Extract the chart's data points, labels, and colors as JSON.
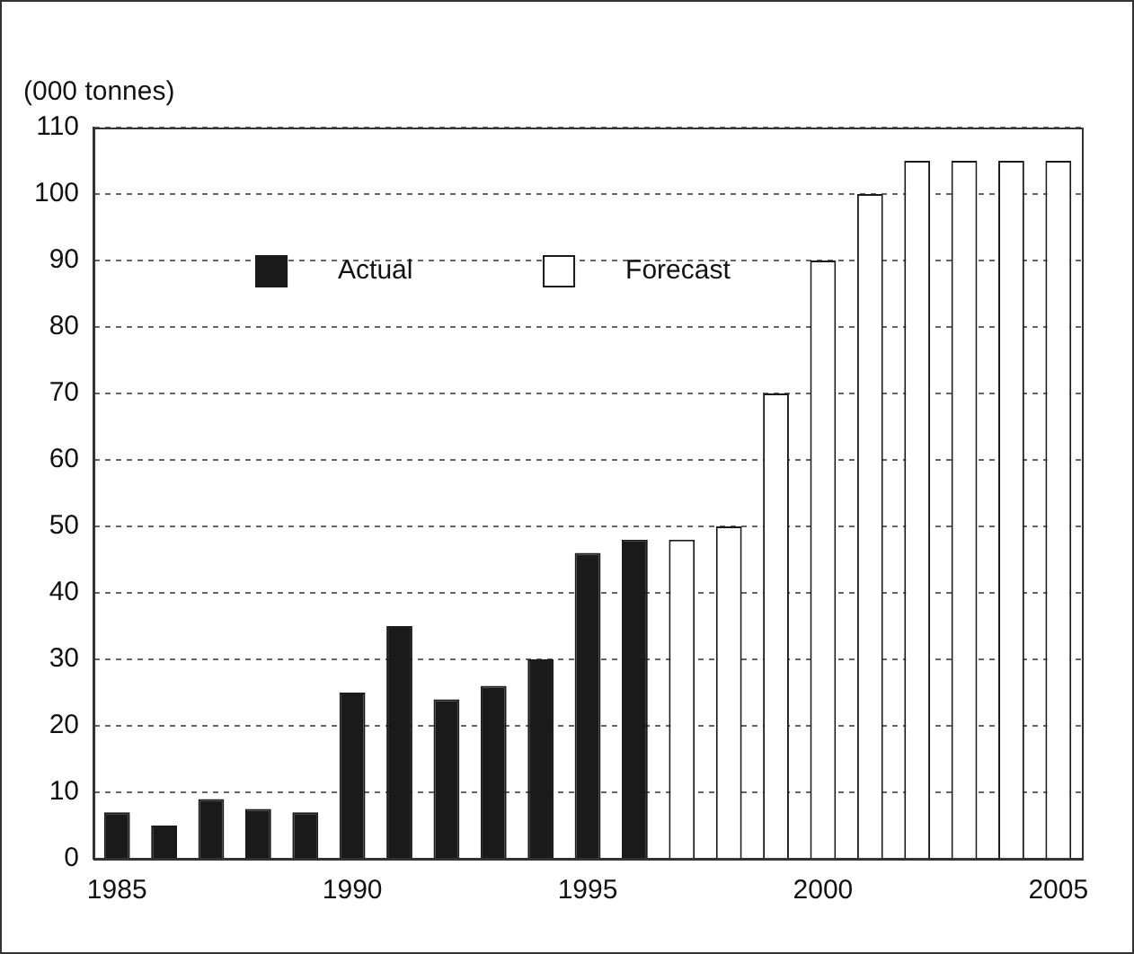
{
  "chart_data": {
    "type": "bar",
    "ylabel": "(000 tonnes)",
    "categories": [
      "1985",
      null,
      null,
      null,
      null,
      "1990",
      null,
      null,
      null,
      null,
      "1995",
      null,
      null,
      null,
      null,
      "2000",
      null,
      null,
      null,
      null,
      "2005"
    ],
    "series": [
      {
        "name": "Actual",
        "color": "#1a1a1a",
        "values": [
          7,
          5,
          9,
          7.5,
          7,
          25,
          35,
          24,
          26,
          30,
          46,
          48,
          null,
          null,
          null,
          null,
          null,
          null,
          null,
          null,
          null
        ]
      },
      {
        "name": "Forecast",
        "color": "#ffffff",
        "values": [
          null,
          null,
          null,
          null,
          null,
          null,
          null,
          null,
          null,
          null,
          null,
          null,
          48,
          50,
          70,
          90,
          100,
          105,
          105,
          105,
          105
        ]
      }
    ],
    "ylim": [
      0,
      110
    ],
    "yticks": [
      0,
      10,
      20,
      30,
      40,
      50,
      60,
      70,
      80,
      90,
      100,
      110
    ],
    "grid": "y",
    "legend": "top left"
  }
}
